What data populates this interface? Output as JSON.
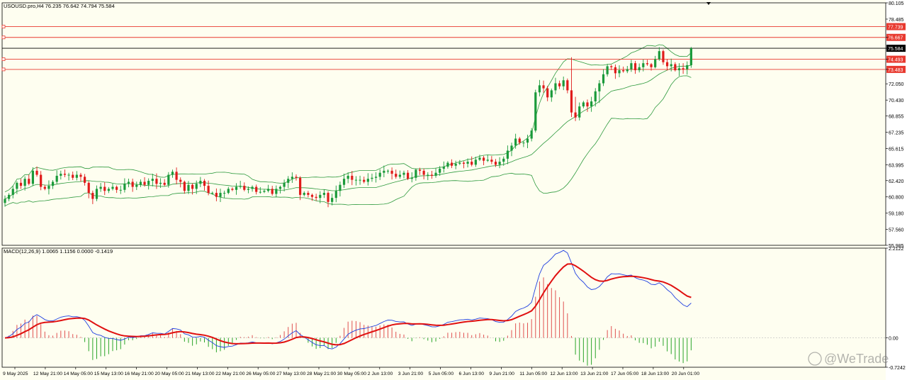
{
  "symbol_info": "USOUSD.pro,H4  76.235 76.642 74.794 75.584",
  "indicator_info": "MACD(12,26,9) 1.0065 1.1156 0.0000 -0.1419",
  "watermark": "@WeTrade",
  "colors": {
    "background": "#fefef0",
    "bull": "#1a9a3a",
    "bear": "#e01b1b",
    "bands": "#2e9a3e",
    "hline": "#e8392f",
    "macd_line": "#1f3fe0",
    "signal_line": "#e01010",
    "hist_pos": "#e05050",
    "hist_neg": "#2aa52a"
  },
  "chart_data": [
    {
      "type": "candlestick",
      "title": "USOUSD.pro,H4",
      "ylim": [
        55.985,
        80.105
      ],
      "y_ticks": [
        "80.105",
        "78.485",
        "76.667",
        "75.584",
        "74.493",
        "73.483",
        "72.050",
        "70.430",
        "68.855",
        "67.235",
        "65.615",
        "63.995",
        "62.420",
        "60.800",
        "59.180",
        "57.560",
        "55.985"
      ],
      "x_ticks": [
        "9 May 2025",
        "12 May 21:00",
        "14 May 05:00",
        "15 May 13:00",
        "16 May 21:00",
        "20 May 05:00",
        "21 May 13:00",
        "22 May 21:00",
        "26 May 05:00",
        "27 May 13:00",
        "28 May 21:00",
        "30 May 05:00",
        "2 Jun 13:00",
        "3 Jun 21:00",
        "5 Jun 05:00",
        "6 Jun 13:00",
        "9 Jun 21:00",
        "11 Jun 05:00",
        "12 Jun 13:00",
        "13 Jun 21:00",
        "17 Jun 05:00",
        "18 Jun 13:00",
        "20 Jun 01:00"
      ],
      "price_lines": [
        {
          "value": 77.739,
          "label": "77.739",
          "color": "red"
        },
        {
          "value": 76.667,
          "label": "76.667",
          "color": "red"
        },
        {
          "value": 75.584,
          "label": "75.584",
          "color": "black"
        },
        {
          "value": 74.493,
          "label": "74.493",
          "color": "red"
        },
        {
          "value": 73.483,
          "label": "73.483",
          "color": "red"
        }
      ],
      "closes": [
        60.6,
        61.0,
        61.6,
        62.2,
        61.9,
        62.6,
        62.1,
        63.4,
        63.0,
        61.8,
        61.6,
        61.9,
        62.3,
        62.9,
        63.1,
        63.0,
        63.0,
        62.7,
        63.0,
        62.8,
        62.2,
        61.2,
        60.6,
        61.6,
        61.8,
        61.4,
        61.6,
        61.8,
        61.5,
        61.5,
        62.1,
        62.3,
        61.8,
        62.0,
        62.3,
        62.0,
        62.4,
        62.6,
        62.1,
        62.2,
        62.0,
        63.0,
        63.3,
        62.5,
        62.3,
        61.4,
        62.0,
        61.6,
        62.1,
        62.4,
        61.9,
        61.2,
        61.2,
        60.8,
        61.2,
        61.2,
        61.6,
        61.5,
        61.8,
        61.9,
        61.5,
        61.6,
        61.8,
        61.3,
        61.3,
        61.4,
        61.6,
        61.1,
        61.6,
        61.8,
        62.2,
        62.6,
        62.8,
        62.7,
        61.0,
        61.2,
        61.0,
        60.8,
        60.7,
        61.0,
        61.2,
        60.3,
        60.7,
        61.4,
        62.0,
        62.6,
        62.9,
        62.5,
        62.5,
        62.5,
        62.3,
        62.6,
        62.7,
        62.8,
        63.2,
        63.4,
        63.4,
        63.1,
        62.8,
        63.0,
        63.2,
        62.6,
        62.7,
        63.5,
        63.4,
        63.0,
        63.0,
        62.9,
        63.2,
        63.6,
        63.8,
        64.2,
        63.9,
        64.1,
        64.2,
        64.1,
        64.3,
        64.0,
        64.5,
        64.7,
        64.4,
        64.5,
        64.3,
        64.0,
        64.3,
        64.6,
        65.4,
        65.9,
        66.6,
        66.2,
        66.2,
        66.6,
        67.4,
        71.2,
        71.9,
        71.6,
        70.7,
        71.4,
        72.1,
        71.8,
        72.4,
        71.4,
        69.2,
        68.7,
        69.8,
        70.2,
        69.8,
        70.3,
        71.3,
        72.1,
        73.0,
        73.8,
        73.7,
        73.1,
        73.4,
        73.3,
        73.5,
        74.1,
        73.4,
        73.7,
        74.1,
        74.0,
        73.7,
        74.5,
        75.3,
        74.2,
        73.8,
        74.0,
        73.4,
        73.6,
        73.5,
        73.9,
        75.584
      ]
    },
    {
      "type": "macd",
      "title": "MACD(12,26,9)",
      "ylim": [
        -0.7242,
        2.2122
      ],
      "y_ticks": [
        "2.2122",
        "0.00",
        "-0.7242"
      ]
    }
  ]
}
